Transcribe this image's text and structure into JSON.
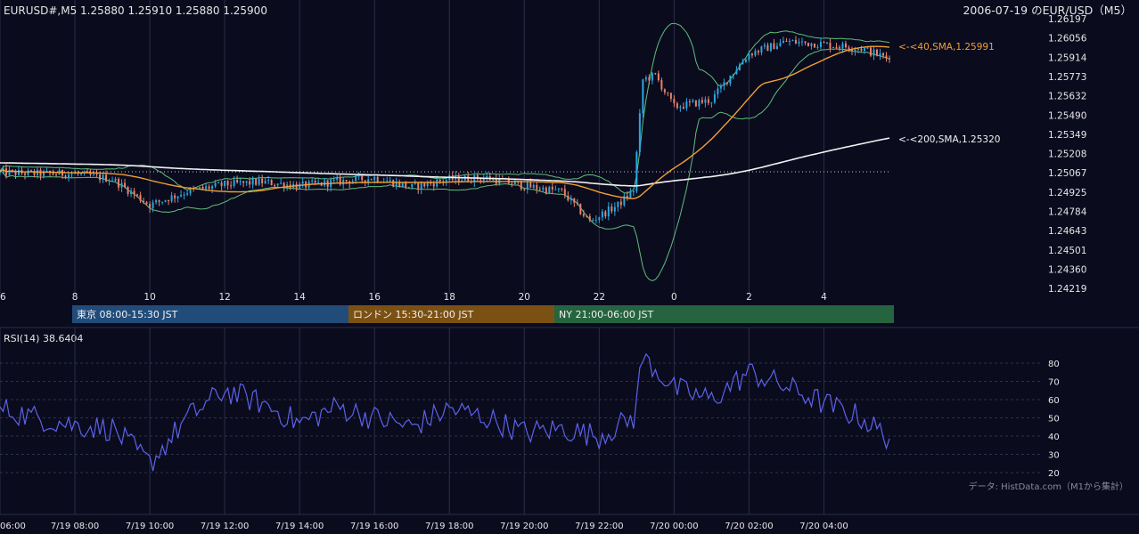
{
  "header": {
    "symbol_quote": "EURUSD#,M5 1.25880 1.25910 1.25880 1.25900",
    "right_title": "2006-07-19 のEUR/USD（M5）"
  },
  "main_panel": {
    "price_ticks": [
      "1.26197",
      "1.26056",
      "1.25914",
      "1.25773",
      "1.25632",
      "1.25490",
      "1.25349",
      "1.25208",
      "1.25067",
      "1.24925",
      "1.24784",
      "1.24643",
      "1.24501",
      "1.24360",
      "1.24219"
    ],
    "hour_ticks": [
      "6",
      "8",
      "10",
      "12",
      "14",
      "16",
      "18",
      "20",
      "22",
      "0",
      "2",
      "4"
    ],
    "sma40_label": "<-<40,SMA,1.25991",
    "sma200_label": "<-<200,SMA,1.25320",
    "sessions": [
      {
        "label": "東京 08:00-15:30 JST",
        "color": "#214c7a"
      },
      {
        "label": "ロンドン 15:30-21:00 JST",
        "color": "#7b5013"
      },
      {
        "label": "NY 21:00-06:00 JST",
        "color": "#25643f"
      }
    ]
  },
  "rsi_panel": {
    "title": "RSI(14) 38.6404",
    "ticks": [
      "80",
      "70",
      "60",
      "50",
      "40",
      "30",
      "20"
    ],
    "source_note": "データ: HistData.com（M1から集計）"
  },
  "time_axis": {
    "labels": [
      "06:00",
      "7/19 08:00",
      "7/19 10:00",
      "7/19 12:00",
      "7/19 14:00",
      "7/19 16:00",
      "7/19 18:00",
      "7/19 20:00",
      "7/19 22:00",
      "7/20 00:00",
      "7/20 02:00",
      "7/20 04:00"
    ]
  },
  "colors": {
    "background": "#0b0b1e",
    "candle_up": "#29a7e0",
    "candle_down": "#e8826b",
    "sma40": "#f0a030",
    "sma200": "#f2f2f2",
    "bollinger": "#5fbf7a",
    "rsi": "#5b62e8",
    "grid": "#2a2e45"
  },
  "chart_data": [
    {
      "type": "candlestick",
      "title": "2006-07-19 のEUR/USD（M5）",
      "interval": "M5",
      "x_range": [
        "2006-07-19 06:00",
        "2006-07-20 05:45"
      ],
      "ylim": [
        1.24219,
        1.26197
      ],
      "grid": true,
      "indicators": [
        "SMA 40",
        "SMA 200",
        "Bollinger Bands"
      ],
      "anchors": [
        {
          "time": "2006-07-19 06:00",
          "close": 1.2507
        },
        {
          "time": "2006-07-19 07:00",
          "close": 1.2506
        },
        {
          "time": "2006-07-19 08:00",
          "close": 1.2506
        },
        {
          "time": "2006-07-19 09:00",
          "close": 1.2502
        },
        {
          "time": "2006-07-19 10:00",
          "close": 1.2483
        },
        {
          "time": "2006-07-19 11:00",
          "close": 1.2493
        },
        {
          "time": "2006-07-19 12:00",
          "close": 1.2498
        },
        {
          "time": "2006-07-19 13:00",
          "close": 1.25
        },
        {
          "time": "2006-07-19 14:00",
          "close": 1.2497
        },
        {
          "time": "2006-07-19 15:00",
          "close": 1.25
        },
        {
          "time": "2006-07-19 16:00",
          "close": 1.2503
        },
        {
          "time": "2006-07-19 17:00",
          "close": 1.2496
        },
        {
          "time": "2006-07-19 18:00",
          "close": 1.2502
        },
        {
          "time": "2006-07-19 19:00",
          "close": 1.2503
        },
        {
          "time": "2006-07-19 20:00",
          "close": 1.2497
        },
        {
          "time": "2006-07-19 21:00",
          "close": 1.2493
        },
        {
          "time": "2006-07-19 21:45",
          "close": 1.2471
        },
        {
          "time": "2006-07-19 22:30",
          "close": 1.2483
        },
        {
          "time": "2006-07-19 22:55",
          "close": 1.2494
        },
        {
          "time": "2006-07-19 23:10",
          "close": 1.2575
        },
        {
          "time": "2006-07-19 23:30",
          "close": 1.2578
        },
        {
          "time": "2006-07-20 00:00",
          "close": 1.2555
        },
        {
          "time": "2006-07-20 01:00",
          "close": 1.256
        },
        {
          "time": "2006-07-20 01:30",
          "close": 1.2578
        },
        {
          "time": "2006-07-20 02:00",
          "close": 1.2594
        },
        {
          "time": "2006-07-20 03:00",
          "close": 1.2603
        },
        {
          "time": "2006-07-20 04:00",
          "close": 1.2601
        },
        {
          "time": "2006-07-20 05:00",
          "close": 1.2598
        },
        {
          "time": "2006-07-20 05:45",
          "close": 1.259
        }
      ],
      "sma40_last": 1.25991,
      "sma200_last": 1.2532,
      "last_candle": {
        "open": 1.2588,
        "high": 1.2591,
        "low": 1.2588,
        "close": 1.259
      }
    },
    {
      "type": "line",
      "title": "RSI(14) 38.6404",
      "ylim": [
        20,
        80
      ],
      "last_value": 38.6404,
      "anchors": [
        {
          "time": "2006-07-19 06:00",
          "rsi": 55
        },
        {
          "time": "2006-07-19 07:00",
          "rsi": 50
        },
        {
          "time": "2006-07-19 08:00",
          "rsi": 46
        },
        {
          "time": "2006-07-19 09:00",
          "rsi": 44
        },
        {
          "time": "2006-07-19 10:00",
          "rsi": 25
        },
        {
          "time": "2006-07-19 11:00",
          "rsi": 50
        },
        {
          "time": "2006-07-19 12:00",
          "rsi": 65
        },
        {
          "time": "2006-07-19 13:00",
          "rsi": 58
        },
        {
          "time": "2006-07-19 14:00",
          "rsi": 47
        },
        {
          "time": "2006-07-19 15:00",
          "rsi": 56
        },
        {
          "time": "2006-07-19 16:00",
          "rsi": 50
        },
        {
          "time": "2006-07-19 17:00",
          "rsi": 45
        },
        {
          "time": "2006-07-19 18:00",
          "rsi": 55
        },
        {
          "time": "2006-07-19 19:00",
          "rsi": 50
        },
        {
          "time": "2006-07-19 20:00",
          "rsi": 42
        },
        {
          "time": "2006-07-19 21:00",
          "rsi": 44
        },
        {
          "time": "2006-07-19 22:00",
          "rsi": 40
        },
        {
          "time": "2006-07-19 22:55",
          "rsi": 50
        },
        {
          "time": "2006-07-19 23:10",
          "rsi": 84
        },
        {
          "time": "2006-07-20 00:00",
          "rsi": 66
        },
        {
          "time": "2006-07-20 01:00",
          "rsi": 60
        },
        {
          "time": "2006-07-20 02:00",
          "rsi": 75
        },
        {
          "time": "2006-07-20 03:00",
          "rsi": 67
        },
        {
          "time": "2006-07-20 04:00",
          "rsi": 58
        },
        {
          "time": "2006-07-20 05:00",
          "rsi": 50
        },
        {
          "time": "2006-07-20 05:45",
          "rsi": 38.6404
        }
      ]
    }
  ]
}
